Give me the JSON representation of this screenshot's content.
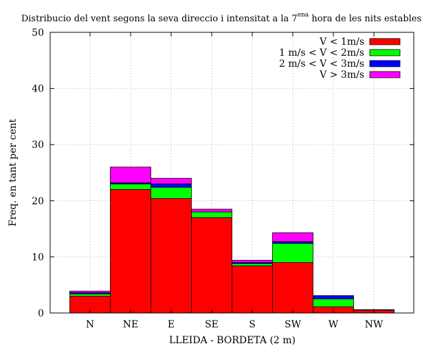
{
  "chart_data": {
    "type": "bar",
    "stacked": true,
    "title": "Distribucio del vent segons la seva direccio i intensitat a la 7",
    "title_superscript": "ena",
    "title_suffix": " hora de les nits estables",
    "xlabel": "LLEIDA - BORDETA (2 m)",
    "ylabel": "Freq. en tant per cent",
    "ylim": [
      0,
      50
    ],
    "yticks": [
      "0",
      "10",
      "20",
      "30",
      "40",
      "50"
    ],
    "grid": true,
    "legend_position": "top-right",
    "categories": [
      "N",
      "NE",
      "E",
      "SE",
      "S",
      "SW",
      "W",
      "NW"
    ],
    "series": [
      {
        "name": "V < 1m/s",
        "color": "#ff0000",
        "values": [
          3.0,
          22.0,
          20.4,
          17.0,
          8.4,
          9.0,
          1.1,
          0.5
        ]
      },
      {
        "name": "1 m/s < V < 2m/s",
        "color": "#00ff00",
        "values": [
          0.4,
          1.0,
          2.0,
          1.0,
          0.4,
          3.4,
          1.4,
          0.0
        ]
      },
      {
        "name": "2 m/s < V < 3m/s",
        "color": "#0000ff",
        "values": [
          0.2,
          0.2,
          0.6,
          0.0,
          0.2,
          0.3,
          0.6,
          0.0
        ]
      },
      {
        "name": "V > 3m/s",
        "color": "#ff00ff",
        "values": [
          0.3,
          2.8,
          1.0,
          0.5,
          0.4,
          1.6,
          0.0,
          0.1
        ]
      }
    ]
  }
}
